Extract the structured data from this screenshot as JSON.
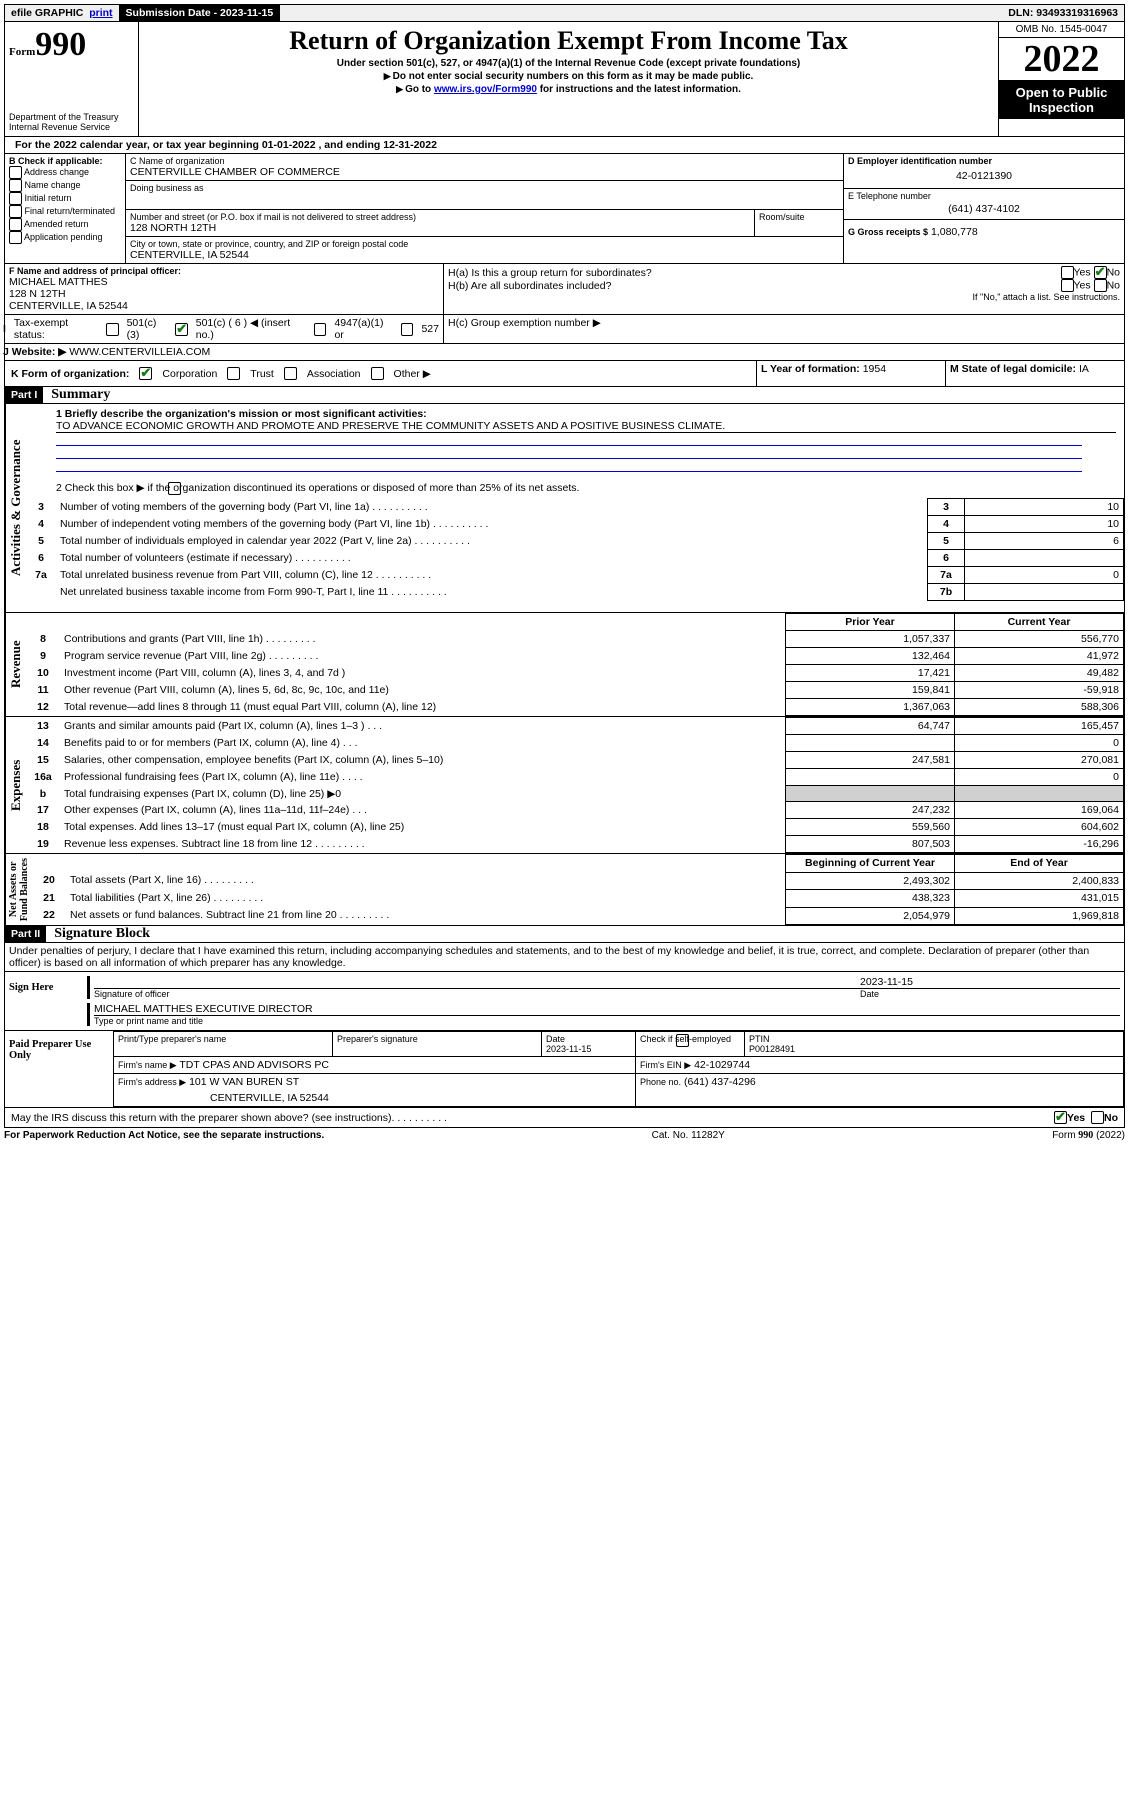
{
  "topbar": {
    "efile": "efile GRAPHIC",
    "print": "print",
    "sub_date_label": "Submission Date - 2023-11-15",
    "dln": "DLN: 93493319316963"
  },
  "header": {
    "form": "Form",
    "form_no": "990",
    "dept": "Department of the Treasury",
    "irs": "Internal Revenue Service",
    "title": "Return of Organization Exempt From Income Tax",
    "sub1": "Under section 501(c), 527, or 4947(a)(1) of the Internal Revenue Code (except private foundations)",
    "sub2": "Do not enter social security numbers on this form as it may be made public.",
    "sub3_a": "Go to ",
    "sub3_link": "www.irs.gov/Form990",
    "sub3_b": " for instructions and the latest information.",
    "omb": "OMB No. 1545-0047",
    "year": "2022",
    "inspection": "Open to Public Inspection"
  },
  "line_a": "For the 2022 calendar year, or tax year beginning 01-01-2022   , and ending 12-31-2022",
  "box_b": {
    "label": "B Check if applicable:",
    "opts": [
      "Address change",
      "Name change",
      "Initial return",
      "Final return/terminated",
      "Amended return",
      "Application pending"
    ]
  },
  "box_c": {
    "name_label": "C Name of organization",
    "org_name": "CENTERVILLE CHAMBER OF COMMERCE",
    "dba_label": "Doing business as",
    "addr_label": "Number and street (or P.O. box if mail is not delivered to street address)",
    "room_label": "Room/suite",
    "addr": "128 NORTH 12TH",
    "city_label": "City or town, state or province, country, and ZIP or foreign postal code",
    "city": "CENTERVILLE, IA  52544"
  },
  "box_d": {
    "label": "D Employer identification number",
    "value": "42-0121390"
  },
  "box_e": {
    "label": "E Telephone number",
    "value": "(641) 437-4102"
  },
  "box_g": {
    "label": "G Gross receipts $",
    "value": "1,080,778"
  },
  "box_f": {
    "label": "F Name and address of principal officer:",
    "name": "MICHAEL MATTHES",
    "addr1": "128 N 12TH",
    "addr2": "CENTERVILLE, IA  52544"
  },
  "box_h": {
    "ha": "H(a)  Is this a group return for subordinates?",
    "hb": "H(b)  Are all subordinates included?",
    "hb_note": "If \"No,\" attach a list. See instructions.",
    "hc": "H(c)  Group exemption number ▶",
    "yes": "Yes",
    "no": "No"
  },
  "box_i": {
    "label": "Tax-exempt status:",
    "c3": "501(c)(3)",
    "c_other": "501(c) ( 6 ) ◀ (insert no.)",
    "a1": "4947(a)(1) or",
    "s527": "527"
  },
  "box_j": {
    "label": "Website: ▶",
    "value": "WWW.CENTERVILLEIA.COM"
  },
  "box_k": {
    "label": "K Form of organization:",
    "corp": "Corporation",
    "trust": "Trust",
    "assoc": "Association",
    "other": "Other ▶"
  },
  "box_l": {
    "label": "L Year of formation:",
    "value": "1954"
  },
  "box_m": {
    "label": "M State of legal domicile:",
    "value": "IA"
  },
  "part1": {
    "label": "Part I",
    "title": "Summary"
  },
  "summary": {
    "q1_label": "1  Briefly describe the organization's mission or most significant activities:",
    "q1_value": "TO ADVANCE ECONOMIC GROWTH AND PROMOTE AND PRESERVE THE COMMUNITY ASSETS AND A POSITIVE BUSINESS CLIMATE.",
    "q2": "2   Check this box ▶       if the organization discontinued its operations or disposed of more than 25% of its net assets.",
    "lines_gov": [
      {
        "n": "3",
        "t": "Number of voting members of the governing body (Part VI, line 1a)",
        "l": "3",
        "v": "10"
      },
      {
        "n": "4",
        "t": "Number of independent voting members of the governing body (Part VI, line 1b)",
        "l": "4",
        "v": "10"
      },
      {
        "n": "5",
        "t": "Total number of individuals employed in calendar year 2022 (Part V, line 2a)",
        "l": "5",
        "v": "6"
      },
      {
        "n": "6",
        "t": "Total number of volunteers (estimate if necessary)",
        "l": "6",
        "v": ""
      },
      {
        "n": "7a",
        "t": "Total unrelated business revenue from Part VIII, column (C), line 12",
        "l": "7a",
        "v": "0"
      },
      {
        "n": "",
        "t": "Net unrelated business taxable income from Form 990-T, Part I, line 11",
        "l": "7b",
        "v": ""
      }
    ],
    "prior": "Prior Year",
    "current": "Current Year",
    "rev": [
      {
        "n": "8",
        "t": "Contributions and grants (Part VIII, line 1h)",
        "p": "1,057,337",
        "c": "556,770"
      },
      {
        "n": "9",
        "t": "Program service revenue (Part VIII, line 2g)",
        "p": "132,464",
        "c": "41,972"
      },
      {
        "n": "10",
        "t": "Investment income (Part VIII, column (A), lines 3, 4, and 7d )",
        "p": "17,421",
        "c": "49,482"
      },
      {
        "n": "11",
        "t": "Other revenue (Part VIII, column (A), lines 5, 6d, 8c, 9c, 10c, and 11e)",
        "p": "159,841",
        "c": "-59,918"
      },
      {
        "n": "12",
        "t": "Total revenue—add lines 8 through 11 (must equal Part VIII, column (A), line 12)",
        "p": "1,367,063",
        "c": "588,306"
      }
    ],
    "exp": [
      {
        "n": "13",
        "t": "Grants and similar amounts paid (Part IX, column (A), lines 1–3 )   .    .    .",
        "p": "64,747",
        "c": "165,457"
      },
      {
        "n": "14",
        "t": "Benefits paid to or for members (Part IX, column (A), line 4)   .    .    .",
        "p": "",
        "c": "0"
      },
      {
        "n": "15",
        "t": "Salaries, other compensation, employee benefits (Part IX, column (A), lines 5–10)",
        "p": "247,581",
        "c": "270,081"
      },
      {
        "n": "16a",
        "t": "Professional fundraising fees (Part IX, column (A), line 11e)   .    .    .    .",
        "p": "",
        "c": "0"
      },
      {
        "n": "b",
        "t": "Total fundraising expenses (Part IX, column (D), line 25) ▶0",
        "p": "shade",
        "c": "shade"
      },
      {
        "n": "17",
        "t": "Other expenses (Part IX, column (A), lines 11a–11d, 11f–24e)   .    .    .",
        "p": "247,232",
        "c": "169,064"
      },
      {
        "n": "18",
        "t": "Total expenses. Add lines 13–17 (must equal Part IX, column (A), line 25)",
        "p": "559,560",
        "c": "604,602"
      },
      {
        "n": "19",
        "t": "Revenue less expenses. Subtract line 18 from line 12",
        "p": "807,503",
        "c": "-16,296"
      }
    ],
    "boy": "Beginning of Current Year",
    "eoy": "End of Year",
    "net": [
      {
        "n": "20",
        "t": "Total assets (Part X, line 16)",
        "p": "2,493,302",
        "c": "2,400,833"
      },
      {
        "n": "21",
        "t": "Total liabilities (Part X, line 26)",
        "p": "438,323",
        "c": "431,015"
      },
      {
        "n": "22",
        "t": "Net assets or fund balances. Subtract line 21 from line 20",
        "p": "2,054,979",
        "c": "1,969,818"
      }
    ]
  },
  "part2": {
    "label": "Part II",
    "title": "Signature Block"
  },
  "sig": {
    "decl": "Under penalties of perjury, I declare that I have examined this return, including accompanying schedules and statements, and to the best of my knowledge and belief, it is true, correct, and complete. Declaration of preparer (other than officer) is based on all information of which preparer has any knowledge.",
    "sign_here": "Sign Here",
    "sig_officer": "Signature of officer",
    "date_label": "Date",
    "date": "2023-11-15",
    "name_title": "MICHAEL MATTHES EXECUTIVE DIRECTOR",
    "type_label": "Type or print name and title"
  },
  "paid": {
    "label": "Paid Preparer Use Only",
    "c_name": "Print/Type preparer's name",
    "c_sig": "Preparer's signature",
    "c_date": "Date",
    "date": "2023-11-15",
    "c_check": "Check       if self-employed",
    "c_ptin": "PTIN",
    "ptin": "P00128491",
    "firm_name_l": "Firm's name    ▶",
    "firm_name": "TDT CPAS AND ADVISORS PC",
    "firm_ein_l": "Firm's EIN ▶",
    "firm_ein": "42-1029744",
    "firm_addr_l": "Firm's address ▶",
    "firm_addr": "101 W VAN BUREN ST",
    "firm_city": "CENTERVILLE, IA  52544",
    "phone_l": "Phone no.",
    "phone": "(641) 437-4296"
  },
  "footer_q": "May the IRS discuss this return with the preparer shown above? (see instructions)",
  "footer": {
    "l": "For Paperwork Reduction Act Notice, see the separate instructions.",
    "m": "Cat. No. 11282Y",
    "r": "Form 990 (2022)"
  }
}
